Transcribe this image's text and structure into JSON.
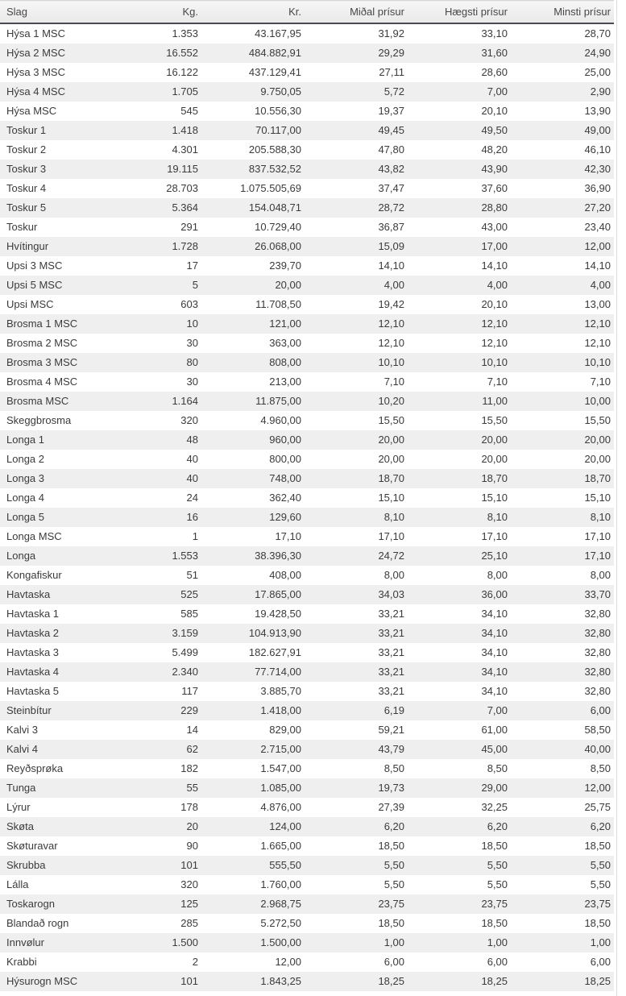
{
  "table": {
    "columns": [
      {
        "key": "slag",
        "label": "Slag",
        "align": "left"
      },
      {
        "key": "kg",
        "label": "Kg.",
        "align": "right"
      },
      {
        "key": "kr",
        "label": "Kr.",
        "align": "right"
      },
      {
        "key": "midal",
        "label": "Miðal prísur",
        "align": "right"
      },
      {
        "key": "haegsti",
        "label": "Hægsti prísur",
        "align": "right"
      },
      {
        "key": "minsti",
        "label": "Minsti prísur",
        "align": "right"
      }
    ],
    "rows": [
      [
        "Hýsa 1 MSC",
        "1.353",
        "43.167,95",
        "31,92",
        "33,10",
        "28,70"
      ],
      [
        "Hýsa 2 MSC",
        "16.552",
        "484.882,91",
        "29,29",
        "31,60",
        "24,90"
      ],
      [
        "Hýsa 3 MSC",
        "16.122",
        "437.129,41",
        "27,11",
        "28,60",
        "25,00"
      ],
      [
        "Hýsa 4 MSC",
        "1.705",
        "9.750,05",
        "5,72",
        "7,00",
        "2,90"
      ],
      [
        "Hýsa MSC",
        "545",
        "10.556,30",
        "19,37",
        "20,10",
        "13,90"
      ],
      [
        "Toskur 1",
        "1.418",
        "70.117,00",
        "49,45",
        "49,50",
        "49,00"
      ],
      [
        "Toskur 2",
        "4.301",
        "205.588,30",
        "47,80",
        "48,20",
        "46,10"
      ],
      [
        "Toskur 3",
        "19.115",
        "837.532,52",
        "43,82",
        "43,90",
        "42,30"
      ],
      [
        "Toskur 4",
        "28.703",
        "1.075.505,69",
        "37,47",
        "37,60",
        "36,90"
      ],
      [
        "Toskur 5",
        "5.364",
        "154.048,71",
        "28,72",
        "28,80",
        "27,20"
      ],
      [
        "Toskur",
        "291",
        "10.729,40",
        "36,87",
        "43,00",
        "23,40"
      ],
      [
        "Hvítingur",
        "1.728",
        "26.068,00",
        "15,09",
        "17,00",
        "12,00"
      ],
      [
        "Upsi 3 MSC",
        "17",
        "239,70",
        "14,10",
        "14,10",
        "14,10"
      ],
      [
        "Upsi 5 MSC",
        "5",
        "20,00",
        "4,00",
        "4,00",
        "4,00"
      ],
      [
        "Upsi MSC",
        "603",
        "11.708,50",
        "19,42",
        "20,10",
        "13,00"
      ],
      [
        "Brosma 1 MSC",
        "10",
        "121,00",
        "12,10",
        "12,10",
        "12,10"
      ],
      [
        "Brosma 2 MSC",
        "30",
        "363,00",
        "12,10",
        "12,10",
        "12,10"
      ],
      [
        "Brosma 3 MSC",
        "80",
        "808,00",
        "10,10",
        "10,10",
        "10,10"
      ],
      [
        "Brosma 4 MSC",
        "30",
        "213,00",
        "7,10",
        "7,10",
        "7,10"
      ],
      [
        "Brosma MSC",
        "1.164",
        "11.875,00",
        "10,20",
        "11,00",
        "10,00"
      ],
      [
        "Skeggbrosma",
        "320",
        "4.960,00",
        "15,50",
        "15,50",
        "15,50"
      ],
      [
        "Longa 1",
        "48",
        "960,00",
        "20,00",
        "20,00",
        "20,00"
      ],
      [
        "Longa 2",
        "40",
        "800,00",
        "20,00",
        "20,00",
        "20,00"
      ],
      [
        "Longa 3",
        "40",
        "748,00",
        "18,70",
        "18,70",
        "18,70"
      ],
      [
        "Longa 4",
        "24",
        "362,40",
        "15,10",
        "15,10",
        "15,10"
      ],
      [
        "Longa 5",
        "16",
        "129,60",
        "8,10",
        "8,10",
        "8,10"
      ],
      [
        "Longa MSC",
        "1",
        "17,10",
        "17,10",
        "17,10",
        "17,10"
      ],
      [
        "Longa",
        "1.553",
        "38.396,30",
        "24,72",
        "25,10",
        "17,10"
      ],
      [
        "Kongafiskur",
        "51",
        "408,00",
        "8,00",
        "8,00",
        "8,00"
      ],
      [
        "Havtaska",
        "525",
        "17.865,00",
        "34,03",
        "36,00",
        "33,70"
      ],
      [
        "Havtaska 1",
        "585",
        "19.428,50",
        "33,21",
        "34,10",
        "32,80"
      ],
      [
        "Havtaska 2",
        "3.159",
        "104.913,90",
        "33,21",
        "34,10",
        "32,80"
      ],
      [
        "Havtaska 3",
        "5.499",
        "182.627,91",
        "33,21",
        "34,10",
        "32,80"
      ],
      [
        "Havtaska 4",
        "2.340",
        "77.714,00",
        "33,21",
        "34,10",
        "32,80"
      ],
      [
        "Havtaska 5",
        "117",
        "3.885,70",
        "33,21",
        "34,10",
        "32,80"
      ],
      [
        "Steinbítur",
        "229",
        "1.418,00",
        "6,19",
        "7,00",
        "6,00"
      ],
      [
        "Kalvi 3",
        "14",
        "829,00",
        "59,21",
        "61,00",
        "58,50"
      ],
      [
        "Kalvi 4",
        "62",
        "2.715,00",
        "43,79",
        "45,00",
        "40,00"
      ],
      [
        "Reyðsprøka",
        "182",
        "1.547,00",
        "8,50",
        "8,50",
        "8,50"
      ],
      [
        "Tunga",
        "55",
        "1.085,00",
        "19,73",
        "29,00",
        "12,00"
      ],
      [
        "Lýrur",
        "178",
        "4.876,00",
        "27,39",
        "32,25",
        "25,75"
      ],
      [
        "Skøta",
        "20",
        "124,00",
        "6,20",
        "6,20",
        "6,20"
      ],
      [
        "Skøturavar",
        "90",
        "1.665,00",
        "18,50",
        "18,50",
        "18,50"
      ],
      [
        "Skrubba",
        "101",
        "555,50",
        "5,50",
        "5,50",
        "5,50"
      ],
      [
        "Lálla",
        "320",
        "1.760,00",
        "5,50",
        "5,50",
        "5,50"
      ],
      [
        "Toskarogn",
        "125",
        "2.968,75",
        "23,75",
        "23,75",
        "23,75"
      ],
      [
        "Blandað rogn",
        "285",
        "5.272,50",
        "18,50",
        "18,50",
        "18,50"
      ],
      [
        "Innvølur",
        "1.500",
        "1.500,00",
        "1,00",
        "1,00",
        "1,00"
      ],
      [
        "Krabbi",
        "2",
        "12,00",
        "6,00",
        "6,00",
        "6,00"
      ],
      [
        "Hýsurogn MSC",
        "101",
        "1.843,25",
        "18,25",
        "18,25",
        "18,25"
      ]
    ]
  },
  "colors": {
    "row_stripe": "#efefef",
    "header_background": "#ededed",
    "header_border_bottom": "#4a4a52",
    "text": "#3b3b3b"
  }
}
